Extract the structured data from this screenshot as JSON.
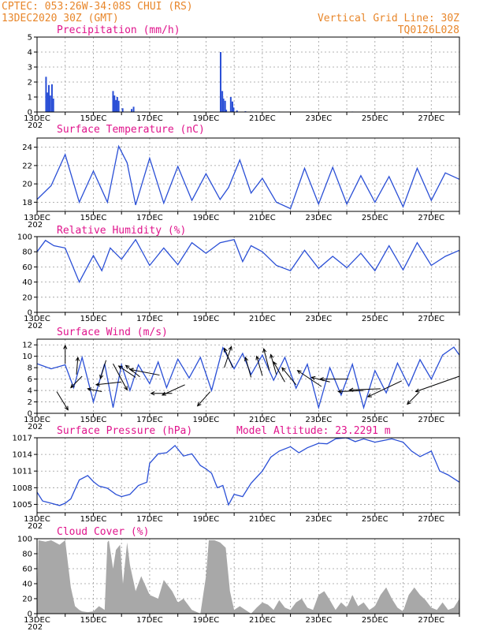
{
  "header": {
    "line1": "CPTEC:  053:26W-34:08S  CHUI (RS)",
    "line2": "13DEC2020 30Z (GMT)",
    "vgrid": "Vertical Grid Line: 30Z",
    "code": "TQ0126L028"
  },
  "colors": {
    "header": "#e8862a",
    "title": "#e0148c",
    "series": "#2a4fd6",
    "cloud": "#a8a8a8",
    "arrow": "#000000",
    "grid": "#9a9a9a"
  },
  "chart_data": [
    {
      "type": "bar",
      "title": "Precipitation (mm/h)",
      "ylim": [
        0,
        5
      ],
      "yticks": [
        0,
        1,
        2,
        3,
        4,
        5
      ],
      "x_days": [
        [
          0.32,
          2.35
        ],
        [
          0.37,
          1.3
        ],
        [
          0.42,
          1.8
        ],
        [
          0.47,
          1.1
        ],
        [
          0.53,
          1.85
        ],
        [
          0.58,
          0.9
        ],
        [
          2.7,
          1.4
        ],
        [
          2.75,
          1.1
        ],
        [
          2.8,
          0.8
        ],
        [
          2.85,
          1.0
        ],
        [
          2.9,
          0.75
        ],
        [
          3.04,
          0.25
        ],
        [
          3.36,
          0.2
        ],
        [
          3.43,
          0.35
        ],
        [
          6.52,
          4.0
        ],
        [
          6.58,
          1.4
        ],
        [
          6.62,
          0.9
        ],
        [
          6.68,
          0.75
        ],
        [
          6.72,
          0.15
        ],
        [
          6.88,
          1.0
        ],
        [
          6.94,
          0.7
        ],
        [
          6.98,
          0.3
        ],
        [
          7.1,
          0.1
        ],
        [
          7.4,
          0.05
        ],
        [
          7.6,
          0.03
        ],
        [
          8.6,
          0.03
        ],
        [
          9.8,
          0.03
        ],
        [
          11.2,
          0.03
        ],
        [
          12.5,
          0.03
        ],
        [
          13.6,
          0.03
        ]
      ]
    },
    {
      "type": "line",
      "title": "Surface Temperature (nC)",
      "ylim": [
        17,
        25
      ],
      "yticks": [
        18,
        20,
        22,
        24
      ],
      "x_days": [
        0,
        0.5,
        1.0,
        1.5,
        2.0,
        2.5,
        2.9,
        3.2,
        3.5,
        4.0,
        4.5,
        5.0,
        5.5,
        6.0,
        6.5,
        6.8,
        7.2,
        7.6,
        8.0,
        8.5,
        9.0,
        9.5,
        10.0,
        10.5,
        11.0,
        11.5,
        12.0,
        12.5,
        13.0,
        13.5,
        14.0,
        14.5,
        15.0
      ],
      "y": [
        18.3,
        19.8,
        23.2,
        18.0,
        21.4,
        18.0,
        24.1,
        22.3,
        17.7,
        22.8,
        17.9,
        21.9,
        18.2,
        21.1,
        18.3,
        19.6,
        22.6,
        19.0,
        20.6,
        18.0,
        17.3,
        21.7,
        17.8,
        21.8,
        17.8,
        20.9,
        18.0,
        20.8,
        17.5,
        21.7,
        18.2,
        21.2,
        20.5
      ]
    },
    {
      "type": "line",
      "title": "Relative Humidity (%)",
      "ylim": [
        0,
        100
      ],
      "yticks": [
        0,
        20,
        40,
        60,
        80,
        100
      ],
      "x_days": [
        0,
        0.3,
        0.6,
        1.0,
        1.5,
        2.0,
        2.3,
        2.6,
        3.0,
        3.5,
        4.0,
        4.5,
        5.0,
        5.5,
        6.0,
        6.5,
        7.0,
        7.3,
        7.6,
        8.0,
        8.5,
        9.0,
        9.5,
        10.0,
        10.5,
        11.0,
        11.5,
        12.0,
        12.5,
        13.0,
        13.5,
        14.0,
        14.5,
        15.0
      ],
      "y": [
        80,
        95,
        88,
        85,
        40,
        75,
        55,
        85,
        70,
        96,
        62,
        85,
        63,
        92,
        78,
        92,
        96,
        67,
        88,
        80,
        62,
        55,
        82,
        58,
        74,
        59,
        78,
        55,
        88,
        56,
        92,
        62,
        74,
        82
      ]
    },
    {
      "type": "line",
      "title": "Surface Wind (m/s)",
      "ylim": [
        0,
        13
      ],
      "yticks": [
        0,
        2,
        4,
        6,
        8,
        10,
        12
      ],
      "x_days": [
        0,
        0.5,
        1.0,
        1.3,
        1.6,
        2.0,
        2.4,
        2.7,
        3.0,
        3.3,
        3.6,
        4.0,
        4.3,
        4.6,
        5.0,
        5.4,
        5.8,
        6.2,
        6.6,
        7.0,
        7.3,
        7.6,
        8.0,
        8.4,
        8.8,
        9.2,
        9.6,
        10.0,
        10.4,
        10.8,
        11.2,
        11.6,
        12.0,
        12.4,
        12.8,
        13.2,
        13.6,
        14.0,
        14.4,
        14.8,
        15.0
      ],
      "y": [
        8.7,
        7.8,
        8.5,
        4.5,
        9.8,
        2.0,
        8.7,
        1.0,
        8.5,
        4.0,
        8.5,
        5.2,
        9.0,
        4.5,
        9.5,
        6.2,
        9.8,
        4.0,
        11.5,
        7.8,
        10.5,
        6.8,
        10.2,
        5.8,
        9.8,
        4.4,
        8.6,
        1.0,
        8.0,
        3.2,
        8.6,
        1.0,
        7.5,
        3.6,
        8.8,
        4.8,
        9.4,
        6.0,
        10.2,
        11.6,
        10.2
      ],
      "arrows": [
        {
          "x": 0.7,
          "y": 3.8,
          "dx": 0.4,
          "dy": -3.2
        },
        {
          "x": 1.0,
          "y": 8.7,
          "dx": 0.0,
          "dy": 3.2
        },
        {
          "x": 1.4,
          "y": 6.8,
          "dx": 0.05,
          "dy": 3.0
        },
        {
          "x": 1.6,
          "y": 6.5,
          "dx": -0.4,
          "dy": -2.0
        },
        {
          "x": 2.3,
          "y": 3.8,
          "dx": -0.5,
          "dy": 0.5
        },
        {
          "x": 2.45,
          "y": 9.3,
          "dx": -0.2,
          "dy": -3.2
        },
        {
          "x": 2.7,
          "y": 8.7,
          "dx": 0.5,
          "dy": -4.6
        },
        {
          "x": 3.0,
          "y": 5.5,
          "dx": -0.9,
          "dy": -0.5
        },
        {
          "x": 3.5,
          "y": 6.3,
          "dx": -0.6,
          "dy": 2.0
        },
        {
          "x": 3.65,
          "y": 6.4,
          "dx": -0.5,
          "dy": 2.0
        },
        {
          "x": 4.35,
          "y": 6.7,
          "dx": -1.05,
          "dy": 1.0
        },
        {
          "x": 4.8,
          "y": 3.5,
          "dx": -0.75,
          "dy": 0.0
        },
        {
          "x": 5.25,
          "y": 5.0,
          "dx": -0.8,
          "dy": -1.8
        },
        {
          "x": 6.15,
          "y": 3.8,
          "dx": -0.45,
          "dy": -2.5
        },
        {
          "x": 6.65,
          "y": 8.0,
          "dx": 0.25,
          "dy": 3.7
        },
        {
          "x": 6.95,
          "y": 8.0,
          "dx": -0.3,
          "dy": 3.4
        },
        {
          "x": 7.6,
          "y": 6.3,
          "dx": -0.2,
          "dy": 3.5
        },
        {
          "x": 8.0,
          "y": 6.6,
          "dx": -0.2,
          "dy": 3.4
        },
        {
          "x": 8.25,
          "y": 7.5,
          "dx": -0.2,
          "dy": 3.8
        },
        {
          "x": 8.5,
          "y": 6.8,
          "dx": -0.2,
          "dy": 3.5
        },
        {
          "x": 8.8,
          "y": 5.5,
          "dx": -0.4,
          "dy": 3.5
        },
        {
          "x": 9.2,
          "y": 5.0,
          "dx": -0.5,
          "dy": 3.0
        },
        {
          "x": 10.1,
          "y": 4.7,
          "dx": -0.85,
          "dy": 2.8
        },
        {
          "x": 10.4,
          "y": 5.5,
          "dx": -0.65,
          "dy": 0.8
        },
        {
          "x": 11.05,
          "y": 6.0,
          "dx": -1.0,
          "dy": 0.0
        },
        {
          "x": 11.6,
          "y": 4.0,
          "dx": -0.9,
          "dy": -0.2
        },
        {
          "x": 12.2,
          "y": 4.3,
          "dx": -1.1,
          "dy": -0.2
        },
        {
          "x": 12.95,
          "y": 5.7,
          "dx": -1.2,
          "dy": -2.8
        },
        {
          "x": 13.55,
          "y": 3.6,
          "dx": -0.4,
          "dy": -2.0
        },
        {
          "x": 15.0,
          "y": 6.5,
          "dx": -1.55,
          "dy": -2.7
        }
      ]
    },
    {
      "type": "line",
      "title": "Surface Pressure (hPa)",
      "extra_label": "Model Altitude: 23.2291  m",
      "ylim": [
        1003.5,
        1017
      ],
      "yticks": [
        1005,
        1008,
        1011,
        1014,
        1017
      ],
      "x_days": [
        0,
        0.2,
        0.5,
        0.8,
        1.0,
        1.2,
        1.5,
        1.8,
        2.0,
        2.2,
        2.5,
        2.8,
        3.0,
        3.3,
        3.6,
        3.9,
        4.0,
        4.3,
        4.6,
        4.9,
        5.2,
        5.5,
        5.8,
        6.0,
        6.2,
        6.4,
        6.6,
        6.8,
        7.0,
        7.3,
        7.6,
        8.0,
        8.3,
        8.6,
        9.0,
        9.3,
        9.6,
        10.0,
        10.3,
        10.6,
        11.0,
        11.3,
        11.6,
        12.0,
        12.3,
        12.6,
        13.0,
        13.3,
        13.6,
        14.0,
        14.3,
        14.6,
        15.0
      ],
      "y": [
        1007.2,
        1005.6,
        1005.2,
        1004.8,
        1005.2,
        1006.0,
        1009.4,
        1010.2,
        1009.1,
        1008.3,
        1007.9,
        1006.8,
        1006.4,
        1006.8,
        1008.4,
        1009.0,
        1012.4,
        1014.1,
        1014.3,
        1015.6,
        1013.7,
        1014.1,
        1012.0,
        1011.4,
        1010.6,
        1008.0,
        1008.4,
        1004.9,
        1006.8,
        1006.4,
        1008.8,
        1011.0,
        1013.5,
        1014.6,
        1015.4,
        1014.3,
        1015.2,
        1016.0,
        1015.9,
        1016.8,
        1017.0,
        1016.3,
        1016.8,
        1016.2,
        1016.5,
        1016.8,
        1016.2,
        1014.6,
        1013.6,
        1014.6,
        1011.0,
        1010.3,
        1009.0
      ]
    },
    {
      "type": "area",
      "title": "Cloud Cover (%)",
      "ylim": [
        0,
        100
      ],
      "yticks": [
        0,
        20,
        40,
        60,
        80,
        100
      ],
      "x_days": [
        0,
        0.05,
        0.3,
        0.5,
        0.8,
        1.0,
        1.2,
        1.35,
        1.5,
        1.6,
        1.8,
        2.0,
        2.2,
        2.4,
        2.5,
        2.55,
        2.7,
        2.8,
        2.95,
        3.05,
        3.2,
        3.3,
        3.5,
        3.7,
        4.0,
        4.3,
        4.5,
        4.8,
        5.0,
        5.2,
        5.5,
        5.8,
        6.0,
        6.1,
        6.3,
        6.5,
        6.7,
        6.85,
        7.0,
        7.2,
        7.4,
        7.6,
        7.8,
        8.0,
        8.2,
        8.4,
        8.6,
        8.8,
        9.0,
        9.2,
        9.4,
        9.6,
        9.8,
        10.0,
        10.2,
        10.4,
        10.6,
        10.8,
        11.0,
        11.2,
        11.4,
        11.6,
        11.8,
        12.0,
        12.2,
        12.4,
        12.6,
        12.8,
        13.0,
        13.2,
        13.4,
        13.6,
        13.8,
        14.0,
        14.2,
        14.4,
        14.6,
        14.8,
        15.0
      ],
      "y": [
        5,
        98,
        96,
        98,
        92,
        98,
        35,
        10,
        5,
        3,
        2,
        3,
        10,
        5,
        95,
        98,
        60,
        85,
        92,
        40,
        95,
        65,
        30,
        50,
        25,
        20,
        45,
        30,
        15,
        20,
        5,
        0,
        50,
        98,
        98,
        95,
        88,
        30,
        5,
        10,
        5,
        0,
        8,
        15,
        12,
        5,
        18,
        8,
        5,
        15,
        20,
        8,
        5,
        25,
        30,
        18,
        5,
        15,
        8,
        25,
        10,
        15,
        5,
        10,
        25,
        35,
        20,
        8,
        3,
        25,
        35,
        25,
        18,
        8,
        5,
        15,
        5,
        8,
        20
      ]
    }
  ],
  "x_axis": {
    "start_label": "13DEC",
    "start_prefix": "202",
    "labels": [
      {
        "day": 0,
        "text": "13DEC"
      },
      {
        "day": 2,
        "text": "15DEC"
      },
      {
        "day": 4,
        "text": "17DEC"
      },
      {
        "day": 6,
        "text": "19DEC"
      },
      {
        "day": 8,
        "text": "21DEC"
      },
      {
        "day": 10,
        "text": "23DEC"
      },
      {
        "day": 12,
        "text": "25DEC"
      },
      {
        "day": 14,
        "text": "27DEC"
      }
    ],
    "day_range": [
      0,
      15
    ]
  }
}
